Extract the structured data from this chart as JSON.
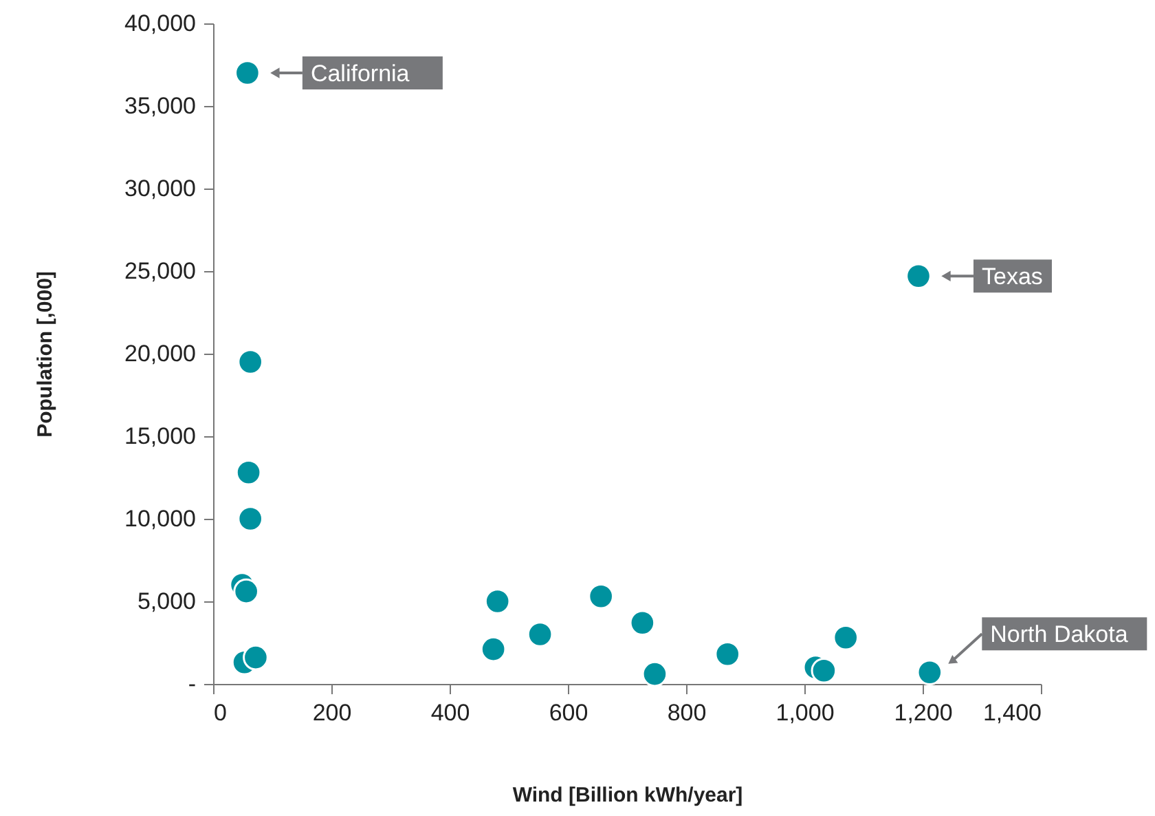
{
  "chart_data": {
    "type": "scatter",
    "xlabel": "Wind [Billion kWh/year]",
    "ylabel": "Population [,000]",
    "x": [
      58,
      63,
      60,
      63,
      49,
      56,
      53,
      72,
      481,
      474,
      553,
      656,
      726,
      747,
      870,
      1019,
      1033,
      1070,
      1212,
      1193
    ],
    "series": [
      {
        "color": "#00929f",
        "values": [
          37000,
          19500,
          12800,
          10000,
          6000,
          5600,
          1300,
          1600,
          5000,
          2100,
          3000,
          5300,
          3700,
          600,
          1800,
          1000,
          800,
          2800,
          700,
          24700
        ]
      }
    ],
    "xlim": [
      0,
      1400
    ],
    "ylim": [
      0,
      40000
    ],
    "xticks": [
      0,
      200,
      400,
      600,
      800,
      {
        "value": 1000,
        "label": "1,000"
      },
      {
        "value": 1200,
        "label": "1,200"
      },
      {
        "value": 1400,
        "label": "1,400"
      }
    ],
    "yticks": [
      {
        "value": 0,
        "label": "-"
      },
      {
        "value": 5000,
        "label": "5,000"
      },
      {
        "value": 10000,
        "label": "10,000"
      },
      {
        "value": 15000,
        "label": "15,000"
      },
      {
        "value": 20000,
        "label": "20,000"
      },
      {
        "value": 25000,
        "label": "25,000"
      },
      {
        "value": 30000,
        "label": "30,000"
      },
      {
        "value": 35000,
        "label": "35,000"
      },
      {
        "value": 40000,
        "label": "40,000"
      }
    ],
    "grid": false,
    "marker": "circle",
    "annotations": [
      {
        "text": "California",
        "x": 58,
        "y": 37000
      },
      {
        "text": "Texas",
        "x": 1193,
        "y": 24700
      },
      {
        "text": "North Dakota",
        "x": 1212,
        "y": 700
      }
    ]
  }
}
